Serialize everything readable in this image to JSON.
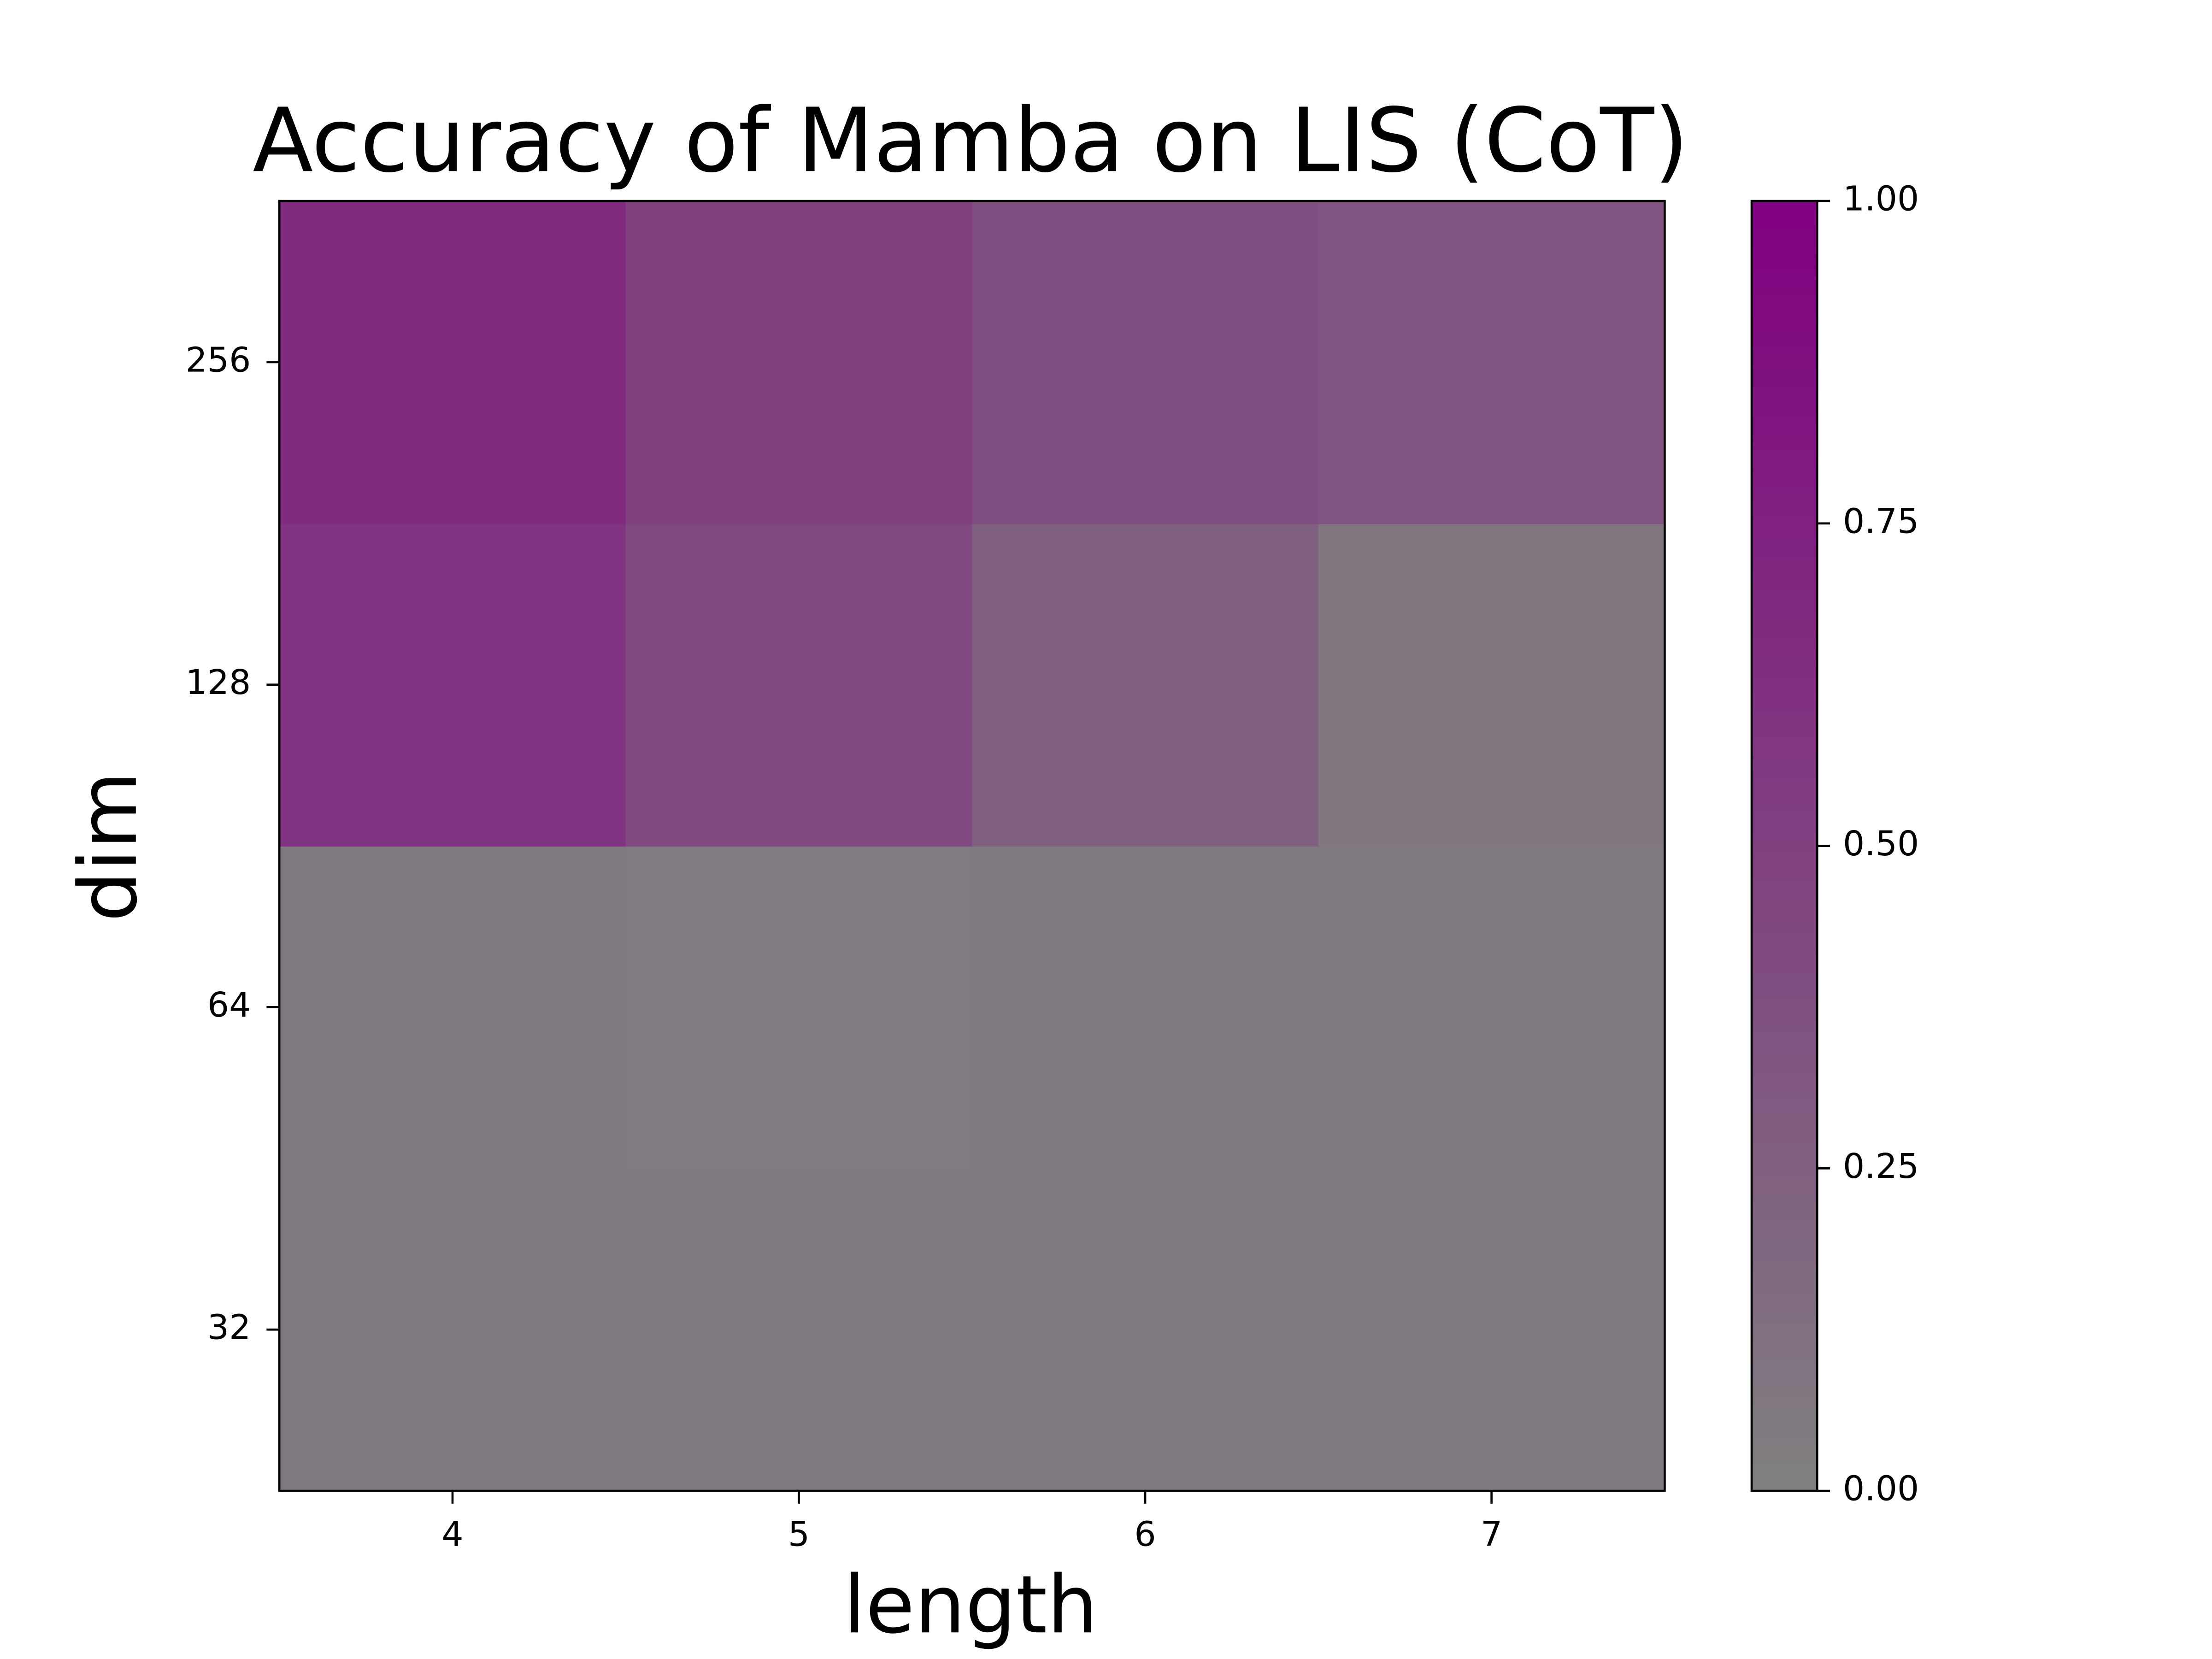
{
  "chart_data": {
    "type": "heatmap",
    "title": "Accuracy of Mamba on LIS (CoT)",
    "x_label": "length",
    "y_label": "dim",
    "x": [
      4,
      5,
      6,
      7
    ],
    "y": [
      32,
      64,
      128,
      256
    ],
    "values": [
      [
        0.05,
        0.05,
        0.05,
        0.05
      ],
      [
        0.06,
        0.04,
        0.05,
        0.05
      ],
      [
        0.6,
        0.42,
        0.25,
        0.08
      ],
      [
        0.67,
        0.5,
        0.4,
        0.35
      ]
    ],
    "cmap": [
      "#808080",
      "#800080"
    ],
    "clim": [
      0,
      1
    ],
    "cticks": [
      {
        "value": 0,
        "label": "0.00"
      },
      {
        "value": 0.25,
        "label": "0.25"
      },
      {
        "value": 0.5,
        "label": "0.50"
      },
      {
        "value": 0.75,
        "label": "0.75"
      },
      {
        "value": 1,
        "label": "1.00"
      }
    ]
  }
}
